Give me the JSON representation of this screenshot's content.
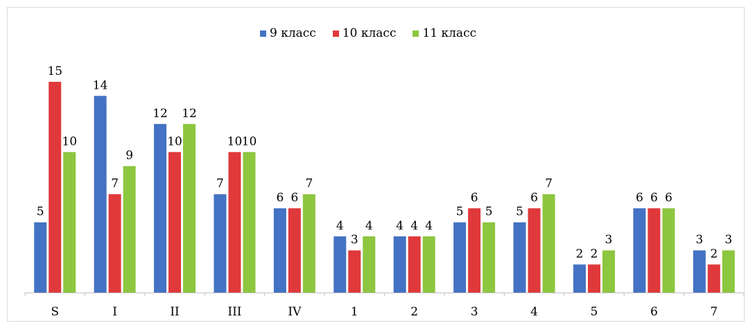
{
  "chart_data": {
    "type": "bar",
    "categories": [
      "S",
      "I",
      "II",
      "III",
      "IV",
      "1",
      "2",
      "3",
      "4",
      "5",
      "6",
      "7"
    ],
    "series": [
      {
        "name": "9 класс",
        "color": "#4472c4",
        "values": [
          5,
          14,
          12,
          7,
          6,
          4,
          4,
          5,
          5,
          2,
          6,
          3
        ]
      },
      {
        "name": "10 класс",
        "color": "#e0393b",
        "values": [
          15,
          7,
          10,
          10,
          6,
          3,
          4,
          6,
          6,
          2,
          6,
          2
        ]
      },
      {
        "name": "11 класс",
        "color": "#8dc63f",
        "values": [
          10,
          9,
          12,
          10,
          7,
          4,
          4,
          5,
          7,
          3,
          6,
          3
        ]
      }
    ],
    "title": "",
    "xlabel": "",
    "ylabel": "",
    "ylim": [
      0,
      15
    ],
    "grid": false,
    "legend_position": "top-center",
    "data_labels": true
  }
}
